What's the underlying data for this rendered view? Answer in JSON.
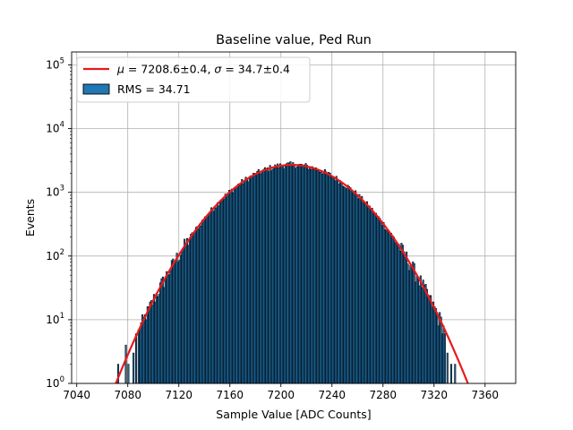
{
  "chart_data": {
    "type": "bar",
    "title": "Baseline value, Ped Run",
    "xlabel": "Sample Value [ADC Counts]",
    "ylabel": "Events",
    "xlim": [
      7036,
      7384
    ],
    "ylim": [
      1,
      160000
    ],
    "yscale": "log",
    "grid": true,
    "legend_position": "top-left",
    "bin_width": 1,
    "xticks": [
      7040,
      7080,
      7120,
      7160,
      7200,
      7240,
      7280,
      7320,
      7360
    ],
    "xtick_labels": [
      "7040",
      "7080",
      "7120",
      "7160",
      "7200",
      "7240",
      "7280",
      "7320",
      "7360"
    ],
    "yticks": [
      1,
      10,
      100,
      1000,
      10000,
      100000
    ],
    "ytick_labels": [
      {
        "base": "10",
        "exp": "0"
      },
      {
        "base": "10",
        "exp": "1"
      },
      {
        "base": "10",
        "exp": "2"
      },
      {
        "base": "10",
        "exp": "3"
      },
      {
        "base": "10",
        "exp": "4"
      },
      {
        "base": "10",
        "exp": "5"
      }
    ],
    "fit": {
      "name": "μ = 7208.6±0.4, σ = 34.7±0.4",
      "mu": 7208.6,
      "sigma": 34.7,
      "peak": 2700,
      "color": "#e8191b"
    },
    "series": [
      {
        "name": "RMS = 34.71",
        "color": "#1f77b4",
        "edgecolor": "#000000",
        "sparse_low_tail": {
          "x": [
            7053,
            7072,
            7075,
            7078,
            7080,
            7084,
            7086
          ],
          "counts": [
            1,
            2,
            1,
            4,
            2,
            3,
            6
          ]
        },
        "sparse_high_tail": {
          "x": [
            7330,
            7333,
            7336,
            7339,
            7341,
            7345
          ],
          "counts": [
            3,
            2,
            2,
            1,
            1,
            1
          ]
        },
        "core_range": [
          7088,
          7328
        ]
      }
    ]
  },
  "legend": {
    "fit_label": "μ = 7208.6±0.4, σ = 34.7±0.4",
    "fit_prefix_mu": "μ",
    "fit_eq1": " = 7208.6±0.4, ",
    "fit_prefix_sigma": "σ",
    "fit_eq2": " = 34.7±0.4",
    "hist_label": "RMS = 34.71"
  }
}
